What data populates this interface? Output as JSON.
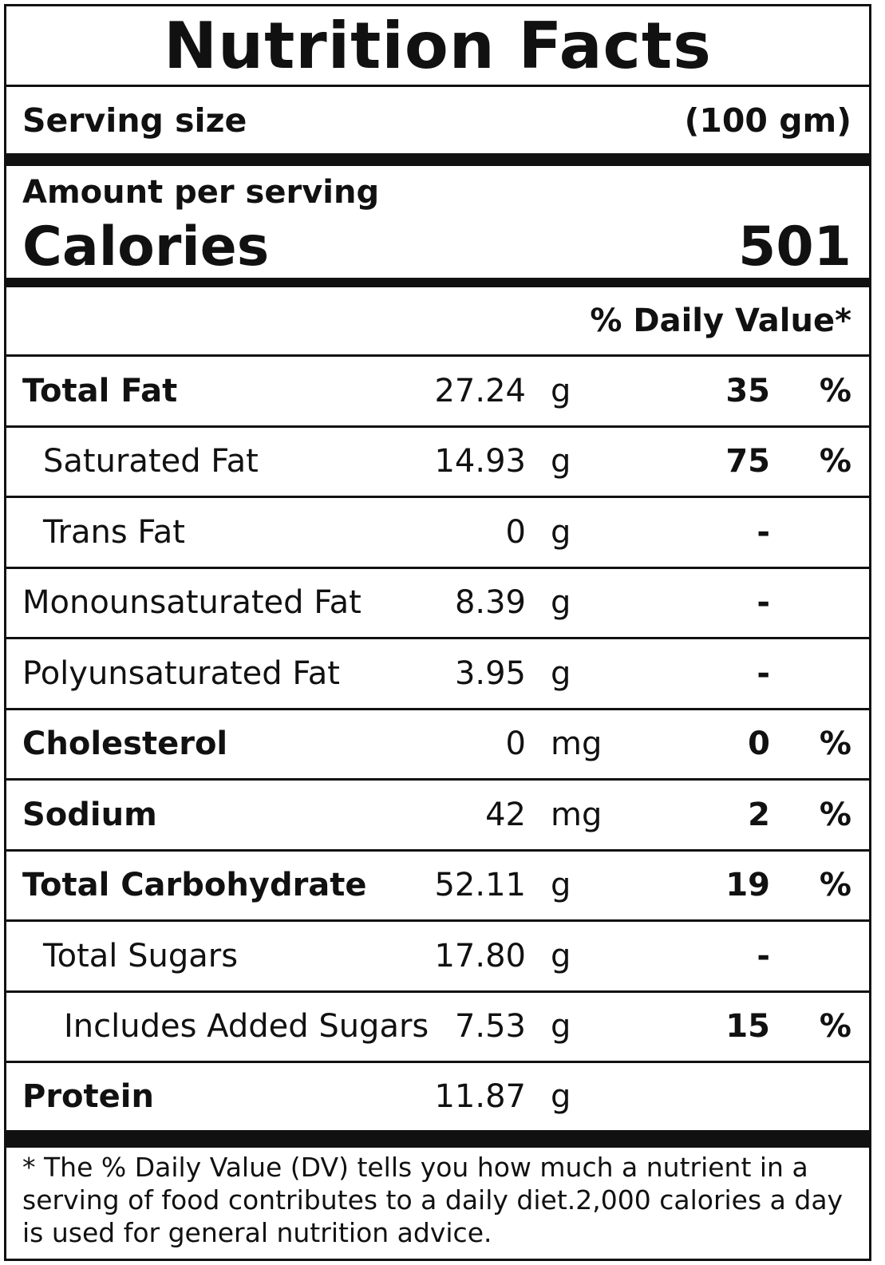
{
  "title": "Nutrition Facts",
  "serving": {
    "label": "Serving size",
    "value": "(100 gm)"
  },
  "amount": {
    "label": "Amount per serving",
    "calories_label": "Calories",
    "calories_value": "501"
  },
  "dv_header": "% Daily Value*",
  "nutrients": [
    {
      "name": "Total Fat",
      "amount": "27.24",
      "unit": "g",
      "dv": "35",
      "pct": "%",
      "bold": true,
      "indent": 0
    },
    {
      "name": "Saturated Fat",
      "amount": "14.93",
      "unit": "g",
      "dv": "75",
      "pct": "%",
      "bold": false,
      "indent": 1
    },
    {
      "name": "Trans Fat",
      "amount": "0",
      "unit": "g",
      "dv": "-",
      "pct": "",
      "bold": false,
      "indent": 1
    },
    {
      "name": "Monounsaturated Fat",
      "amount": "8.39",
      "unit": "g",
      "dv": "-",
      "pct": "",
      "bold": false,
      "indent": 0
    },
    {
      "name": "Polyunsaturated Fat",
      "amount": "3.95",
      "unit": "g",
      "dv": "-",
      "pct": "",
      "bold": false,
      "indent": 0
    },
    {
      "name": "Cholesterol",
      "amount": "0",
      "unit": "mg",
      "dv": "0",
      "pct": "%",
      "bold": true,
      "indent": 0
    },
    {
      "name": "Sodium",
      "amount": "42",
      "unit": "mg",
      "dv": "2",
      "pct": "%",
      "bold": true,
      "indent": 0
    },
    {
      "name": "Total Carbohydrate",
      "amount": "52.11",
      "unit": "g",
      "dv": "19",
      "pct": "%",
      "bold": true,
      "indent": 0
    },
    {
      "name": "Total Sugars",
      "amount": "17.80",
      "unit": "g",
      "dv": "-",
      "pct": "",
      "bold": false,
      "indent": 1
    },
    {
      "name": "Includes Added Sugars",
      "amount": "7.53",
      "unit": "g",
      "dv": "15",
      "pct": "%",
      "bold": false,
      "indent": 2
    },
    {
      "name": "Protein",
      "amount": "11.87",
      "unit": "g",
      "dv": "",
      "pct": "",
      "bold": true,
      "indent": 0
    }
  ],
  "footnote": "* The % Daily Value (DV) tells you how much a nutrient in a serving of food contributes to a daily diet.2,000 calories a day is used for general nutrition advice."
}
